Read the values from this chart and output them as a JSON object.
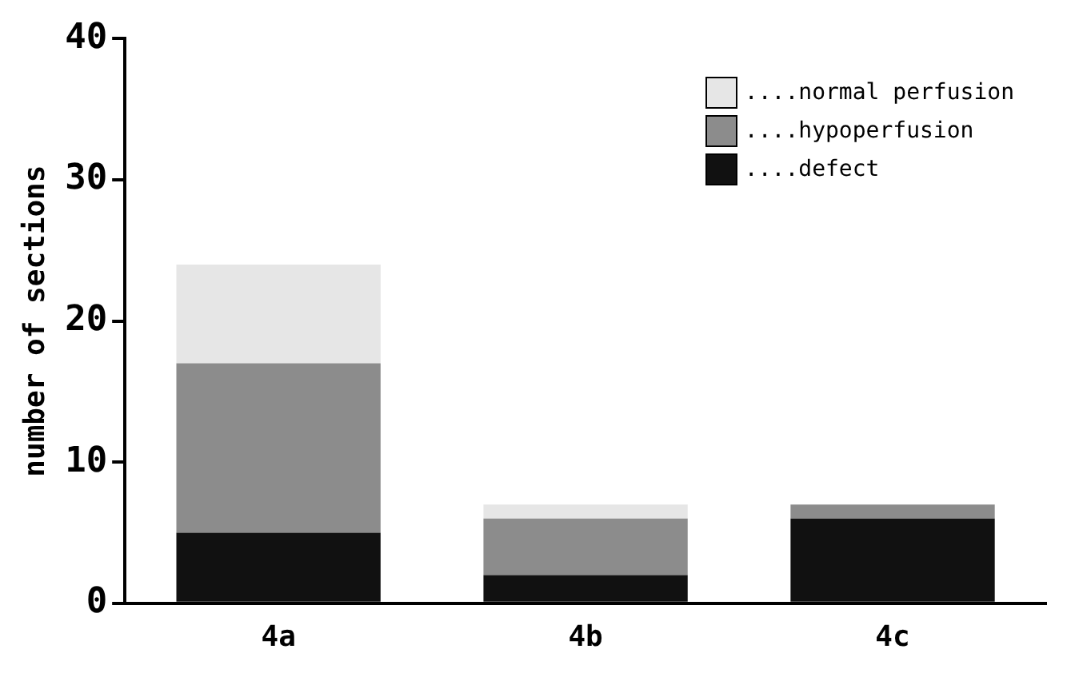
{
  "chart_data": {
    "type": "bar",
    "ylabel": "number of sections",
    "categories": [
      "4a",
      "4b",
      "4c"
    ],
    "stacked": true,
    "ylim": [
      0,
      40
    ],
    "yticks": [
      0,
      10,
      20,
      30,
      40
    ],
    "grid": false,
    "legend": "top right",
    "series": [
      {
        "name": "....defect",
        "color": "#111111",
        "values": [
          5,
          2,
          6
        ]
      },
      {
        "name": "....hypoperfusion",
        "color": "#8c8c8c",
        "values": [
          12,
          4,
          1
        ]
      },
      {
        "name": "....normal perfusion",
        "color": "#e6e6e6",
        "values": [
          7,
          1,
          0
        ]
      }
    ]
  }
}
